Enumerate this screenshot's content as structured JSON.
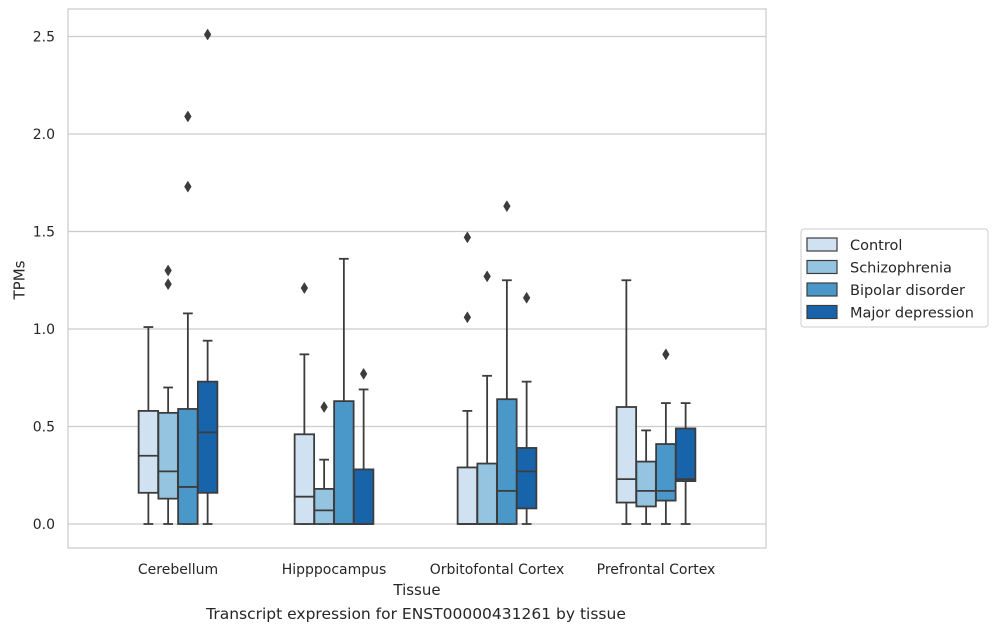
{
  "caption": "Transcript expression for ENST00000431261 by tissue",
  "chart_data": {
    "type": "box",
    "xlabel": "Tissue",
    "ylabel": "TPMs",
    "ylim": [
      -0.12,
      2.63
    ],
    "yticks": [
      "0.0",
      "0.5",
      "1.0",
      "1.5",
      "2.0",
      "2.5"
    ],
    "grid": "horizontal",
    "legend_position": "right",
    "categories": [
      "Cerebellum",
      "Hipppocampus",
      "Orbitofontal Cortex",
      "Prefrontal Cortex"
    ],
    "series": [
      {
        "name": "Control",
        "color": "#d0e1f2",
        "boxes": [
          {
            "whisker_low": 0.0,
            "q1": 0.16,
            "median": 0.35,
            "q3": 0.58,
            "whisker_high": 1.01,
            "outliers": []
          },
          {
            "whisker_low": 0.0,
            "q1": 0.0,
            "median": 0.14,
            "q3": 0.46,
            "whisker_high": 0.87,
            "outliers": [
              1.21
            ]
          },
          {
            "whisker_low": 0.0,
            "q1": 0.0,
            "median": 0.0,
            "q3": 0.29,
            "whisker_high": 0.58,
            "outliers": [
              1.06,
              1.47
            ]
          },
          {
            "whisker_low": 0.0,
            "q1": 0.11,
            "median": 0.23,
            "q3": 0.6,
            "whisker_high": 1.25,
            "outliers": []
          }
        ]
      },
      {
        "name": "Schizophrenia",
        "color": "#94c4df",
        "boxes": [
          {
            "whisker_low": 0.0,
            "q1": 0.13,
            "median": 0.27,
            "q3": 0.57,
            "whisker_high": 0.7,
            "outliers": [
              1.23,
              1.3
            ]
          },
          {
            "whisker_low": 0.0,
            "q1": 0.0,
            "median": 0.07,
            "q3": 0.18,
            "whisker_high": 0.33,
            "outliers": [
              0.6
            ]
          },
          {
            "whisker_low": 0.0,
            "q1": 0.0,
            "median": 0.0,
            "q3": 0.31,
            "whisker_high": 0.76,
            "outliers": [
              1.27
            ]
          },
          {
            "whisker_low": 0.0,
            "q1": 0.09,
            "median": 0.17,
            "q3": 0.32,
            "whisker_high": 0.48,
            "outliers": []
          }
        ]
      },
      {
        "name": "Bipolar disorder",
        "color": "#4a98c9",
        "boxes": [
          {
            "whisker_low": 0.0,
            "q1": 0.0,
            "median": 0.19,
            "q3": 0.59,
            "whisker_high": 1.08,
            "outliers": [
              1.73,
              2.09
            ]
          },
          {
            "whisker_low": 0.0,
            "q1": 0.0,
            "median": 0.0,
            "q3": 0.63,
            "whisker_high": 1.36,
            "outliers": []
          },
          {
            "whisker_low": 0.0,
            "q1": 0.0,
            "median": 0.17,
            "q3": 0.64,
            "whisker_high": 1.25,
            "outliers": [
              1.63
            ]
          },
          {
            "whisker_low": 0.0,
            "q1": 0.12,
            "median": 0.17,
            "q3": 0.41,
            "whisker_high": 0.62,
            "outliers": [
              0.87
            ]
          }
        ]
      },
      {
        "name": "Major depression",
        "color": "#1764ab",
        "boxes": [
          {
            "whisker_low": 0.0,
            "q1": 0.16,
            "median": 0.47,
            "q3": 0.73,
            "whisker_high": 0.94,
            "outliers": [
              2.51
            ]
          },
          {
            "whisker_low": 0.0,
            "q1": 0.0,
            "median": 0.0,
            "q3": 0.28,
            "whisker_high": 0.69,
            "outliers": [
              0.77
            ]
          },
          {
            "whisker_low": 0.0,
            "q1": 0.08,
            "median": 0.27,
            "q3": 0.39,
            "whisker_high": 0.73,
            "outliers": [
              1.16
            ]
          },
          {
            "whisker_low": 0.0,
            "q1": 0.22,
            "median": 0.23,
            "q3": 0.49,
            "whisker_high": 0.62,
            "outliers": []
          }
        ]
      }
    ]
  }
}
